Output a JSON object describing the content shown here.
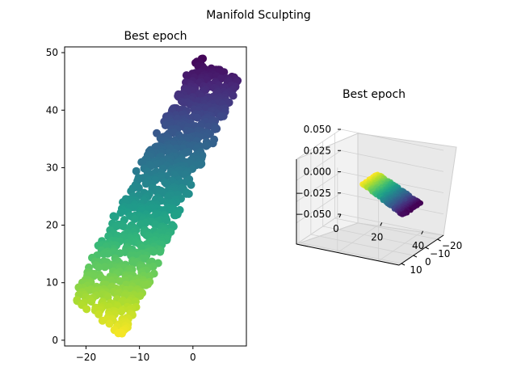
{
  "figure": {
    "suptitle": "Manifold Sculpting"
  },
  "chart_data": [
    {
      "type": "scatter",
      "title": "Best epoch",
      "xlabel": "",
      "ylabel": "",
      "xlim": [
        -24,
        10
      ],
      "ylim": [
        -1,
        51
      ],
      "xticks": [
        -20,
        -10,
        0
      ],
      "yticks": [
        0,
        10,
        20,
        30,
        40,
        50
      ],
      "colormap": "viridis",
      "color_encoding": "color varies from yellow (low y) to dark purple (high y)",
      "shape": {
        "description": "point cloud filling a tilted rectangular strip",
        "corners": [
          [
            -22.5,
            7.5
          ],
          [
            -13,
            0.5
          ],
          [
            9,
            45.5
          ],
          [
            1,
            49.5
          ]
        ],
        "approx_points": 1000
      },
      "grid": false,
      "legend": "none"
    },
    {
      "type": "scatter3d",
      "title": "Best epoch",
      "colormap": "viridis",
      "x_axis": {
        "range": [
          0,
          50
        ],
        "ticks": [
          0,
          20,
          40
        ]
      },
      "y_axis": {
        "range": [
          -25,
          12
        ],
        "ticks": [
          10,
          0,
          -10,
          -20
        ]
      },
      "z_axis": {
        "range": [
          -0.05,
          0.05
        ],
        "ticks": [
          "0.050",
          "0.025",
          "0.000",
          "−0.025",
          "−0.050"
        ]
      },
      "shape": "flat plane at z = 0 (all points lie on one sheet)",
      "grid": true,
      "legend": "none"
    }
  ],
  "colors": {
    "viridis_low": "#fde725",
    "viridis_mid": "#21918c",
    "viridis_high": "#440154",
    "pane": "#f2f2f2",
    "grid": "#d0d0d0"
  }
}
